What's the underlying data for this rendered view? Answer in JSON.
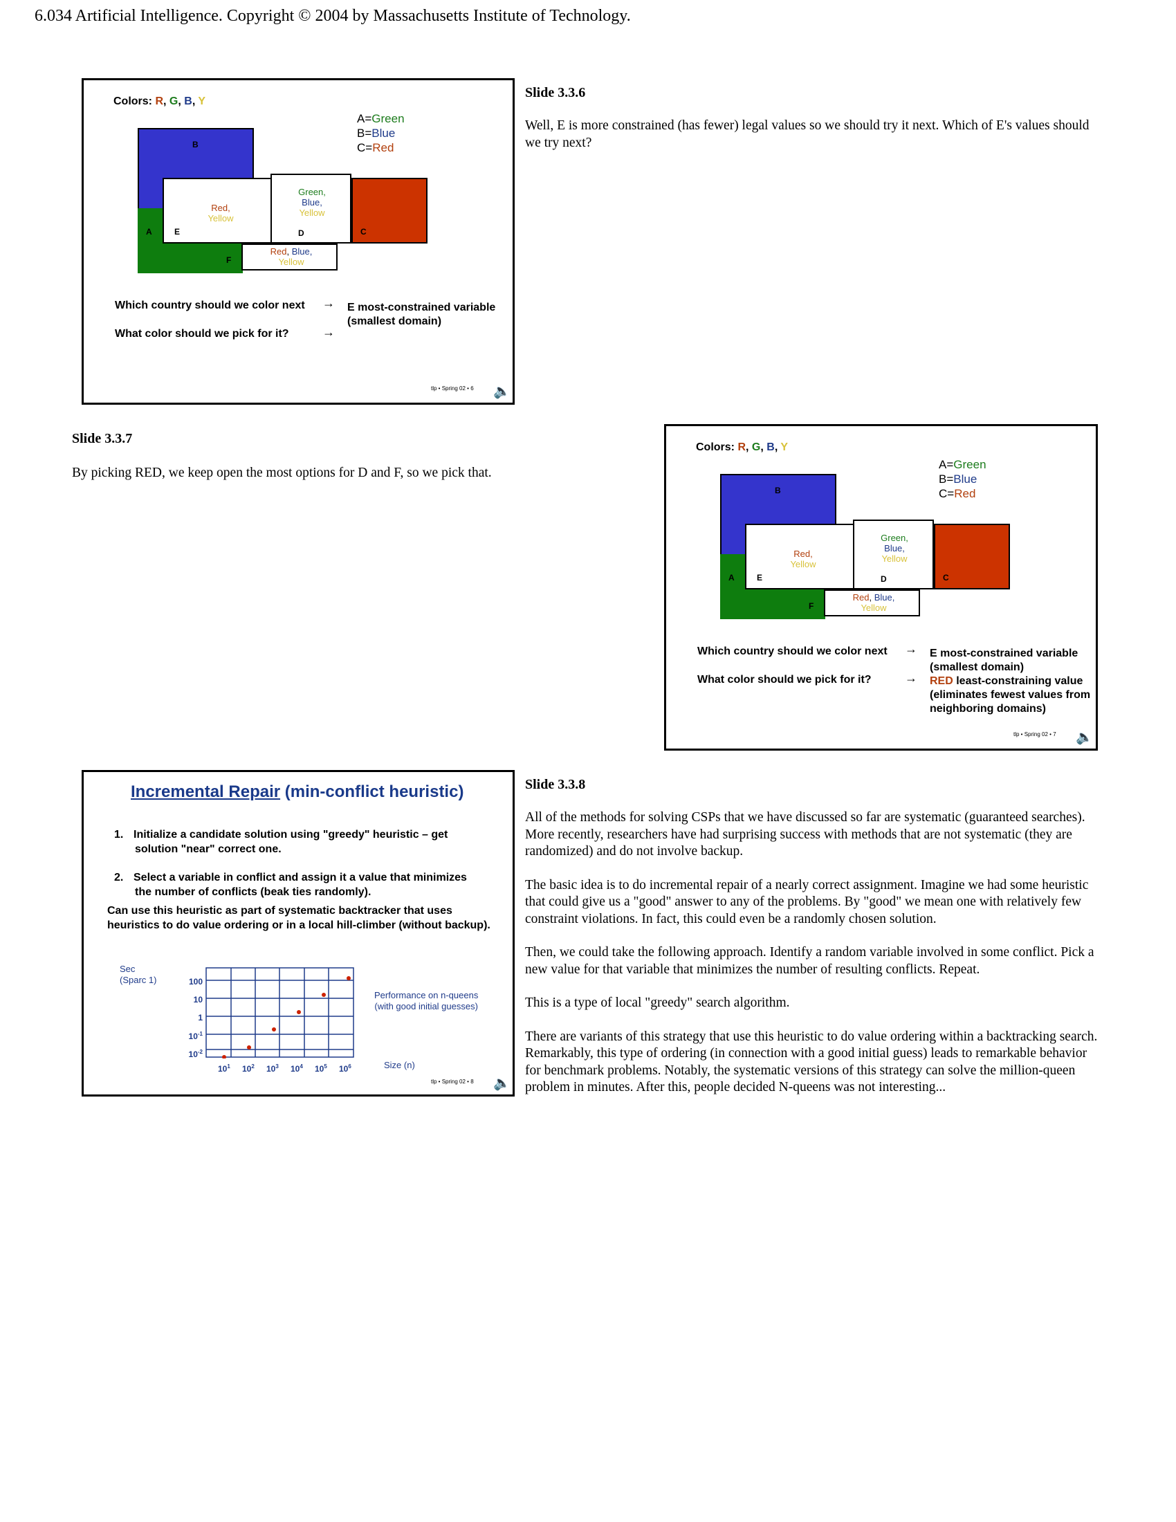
{
  "header": "6.034 Artificial Intelligence. Copyright © 2004 by Massachusetts Institute of Technology.",
  "map_common": {
    "colors_prefix": "Colors: ",
    "c_r": "R",
    "c_g": "G",
    "c_b": "B",
    "c_y": "Y",
    "sep": ", ",
    "key_a_prefix": "A=",
    "key_a_val": "Green",
    "key_b_prefix": "B=",
    "key_b_val": "Blue",
    "key_c_prefix": "C=",
    "key_c_val": "Red",
    "label_a": "A",
    "label_b": "B",
    "label_c": "C",
    "label_d": "D",
    "label_e": "E",
    "label_f": "F",
    "e_vals": [
      "Red,",
      "Yellow"
    ],
    "d_vals": [
      "Green,",
      "Blue,",
      "Yellow"
    ],
    "f_vals_red": "Red",
    "f_vals_blue": "Blue,",
    "f_vals_yellow": "Yellow",
    "q1": "Which country should we color next",
    "q2": "What color should we pick for it?",
    "a1": [
      "E most-constrained variable",
      "(smallest domain)"
    ],
    "arrow": "→",
    "speaker": "🔈"
  },
  "colors": {
    "region_blue": "#3434cc",
    "region_green": "#0e7d0e",
    "region_red": "#cc3300"
  },
  "slide1": {
    "footer": "tlp • Spring 02 • 6",
    "title": "Slide 3.3.6",
    "text": "Well, E is more constrained (has fewer) legal values so we should try it next. Which of E's values should we try next?"
  },
  "slide2": {
    "footer": "tlp • Spring 02 • 7",
    "a2_red": "RED",
    "a2_rest": " least-constraining value",
    "a2_lines": [
      "(eliminates fewest values from",
      "neighboring domains)"
    ],
    "title": "Slide 3.3.7",
    "text": "By picking RED, we keep open the most options for D and F, so we pick that."
  },
  "slide3": {
    "title_u": "Incremental Repair",
    "title_rest": " (min-conflict heuristic)",
    "item1_num": "1.",
    "item1": [
      "Initialize a candidate solution using \"greedy\" heuristic – get",
      "solution \"near\" correct one."
    ],
    "item2_num": "2.",
    "item2": [
      "Select a variable in conflict and assign it a value that minimizes",
      "the number of conflicts (beak ties randomly)."
    ],
    "extra": [
      "Can use this heuristic as part of systematic backtracker that uses",
      "heuristics to do value ordering or in a local hill-climber (without backup)."
    ],
    "y_axis_label": [
      "Sec",
      "(Sparc 1)"
    ],
    "y_ticks": [
      "100",
      "10",
      "1",
      "10-1",
      "10-2"
    ],
    "x_ticks": [
      "10",
      "10",
      "10",
      "10",
      "10",
      "10"
    ],
    "x_exps": [
      "1",
      "2",
      "3",
      "4",
      "5",
      "6"
    ],
    "x_axis_label": "Size (n)",
    "perf_label": [
      "Performance on n-queens",
      "(with good initial guesses)"
    ],
    "footer": "tlp • Spring 02 • 8",
    "slide_title": "Slide 3.3.8",
    "paragraphs": [
      "All of the methods for solving CSPs that we have discussed so far are systematic (guaranteed searches). More recently, researchers have had surprising success with methods that are not systematic (they are randomized) and do not involve backup.",
      "The basic idea is to do incremental repair of a nearly correct assignment. Imagine we had some heuristic that could give us a \"good\" answer to any of the problems. By \"good\" we mean one with relatively few constraint violations. In fact, this could even be a randomly chosen solution.",
      "Then, we could take the following approach. Identify a random variable involved in some conflict. Pick a new value for that variable that minimizes the number of resulting conflicts. Repeat.",
      "This is a type of local \"greedy\" search algorithm.",
      "There are variants of this strategy that use this heuristic to do value ordering within a backtracking search. Remarkably, this type of ordering (in connection with a good initial guess) leads to remarkable behavior for benchmark problems. Notably, the systematic versions of this strategy can solve the million-queen problem in minutes. After this, people decided N-queens was not interesting..."
    ]
  }
}
